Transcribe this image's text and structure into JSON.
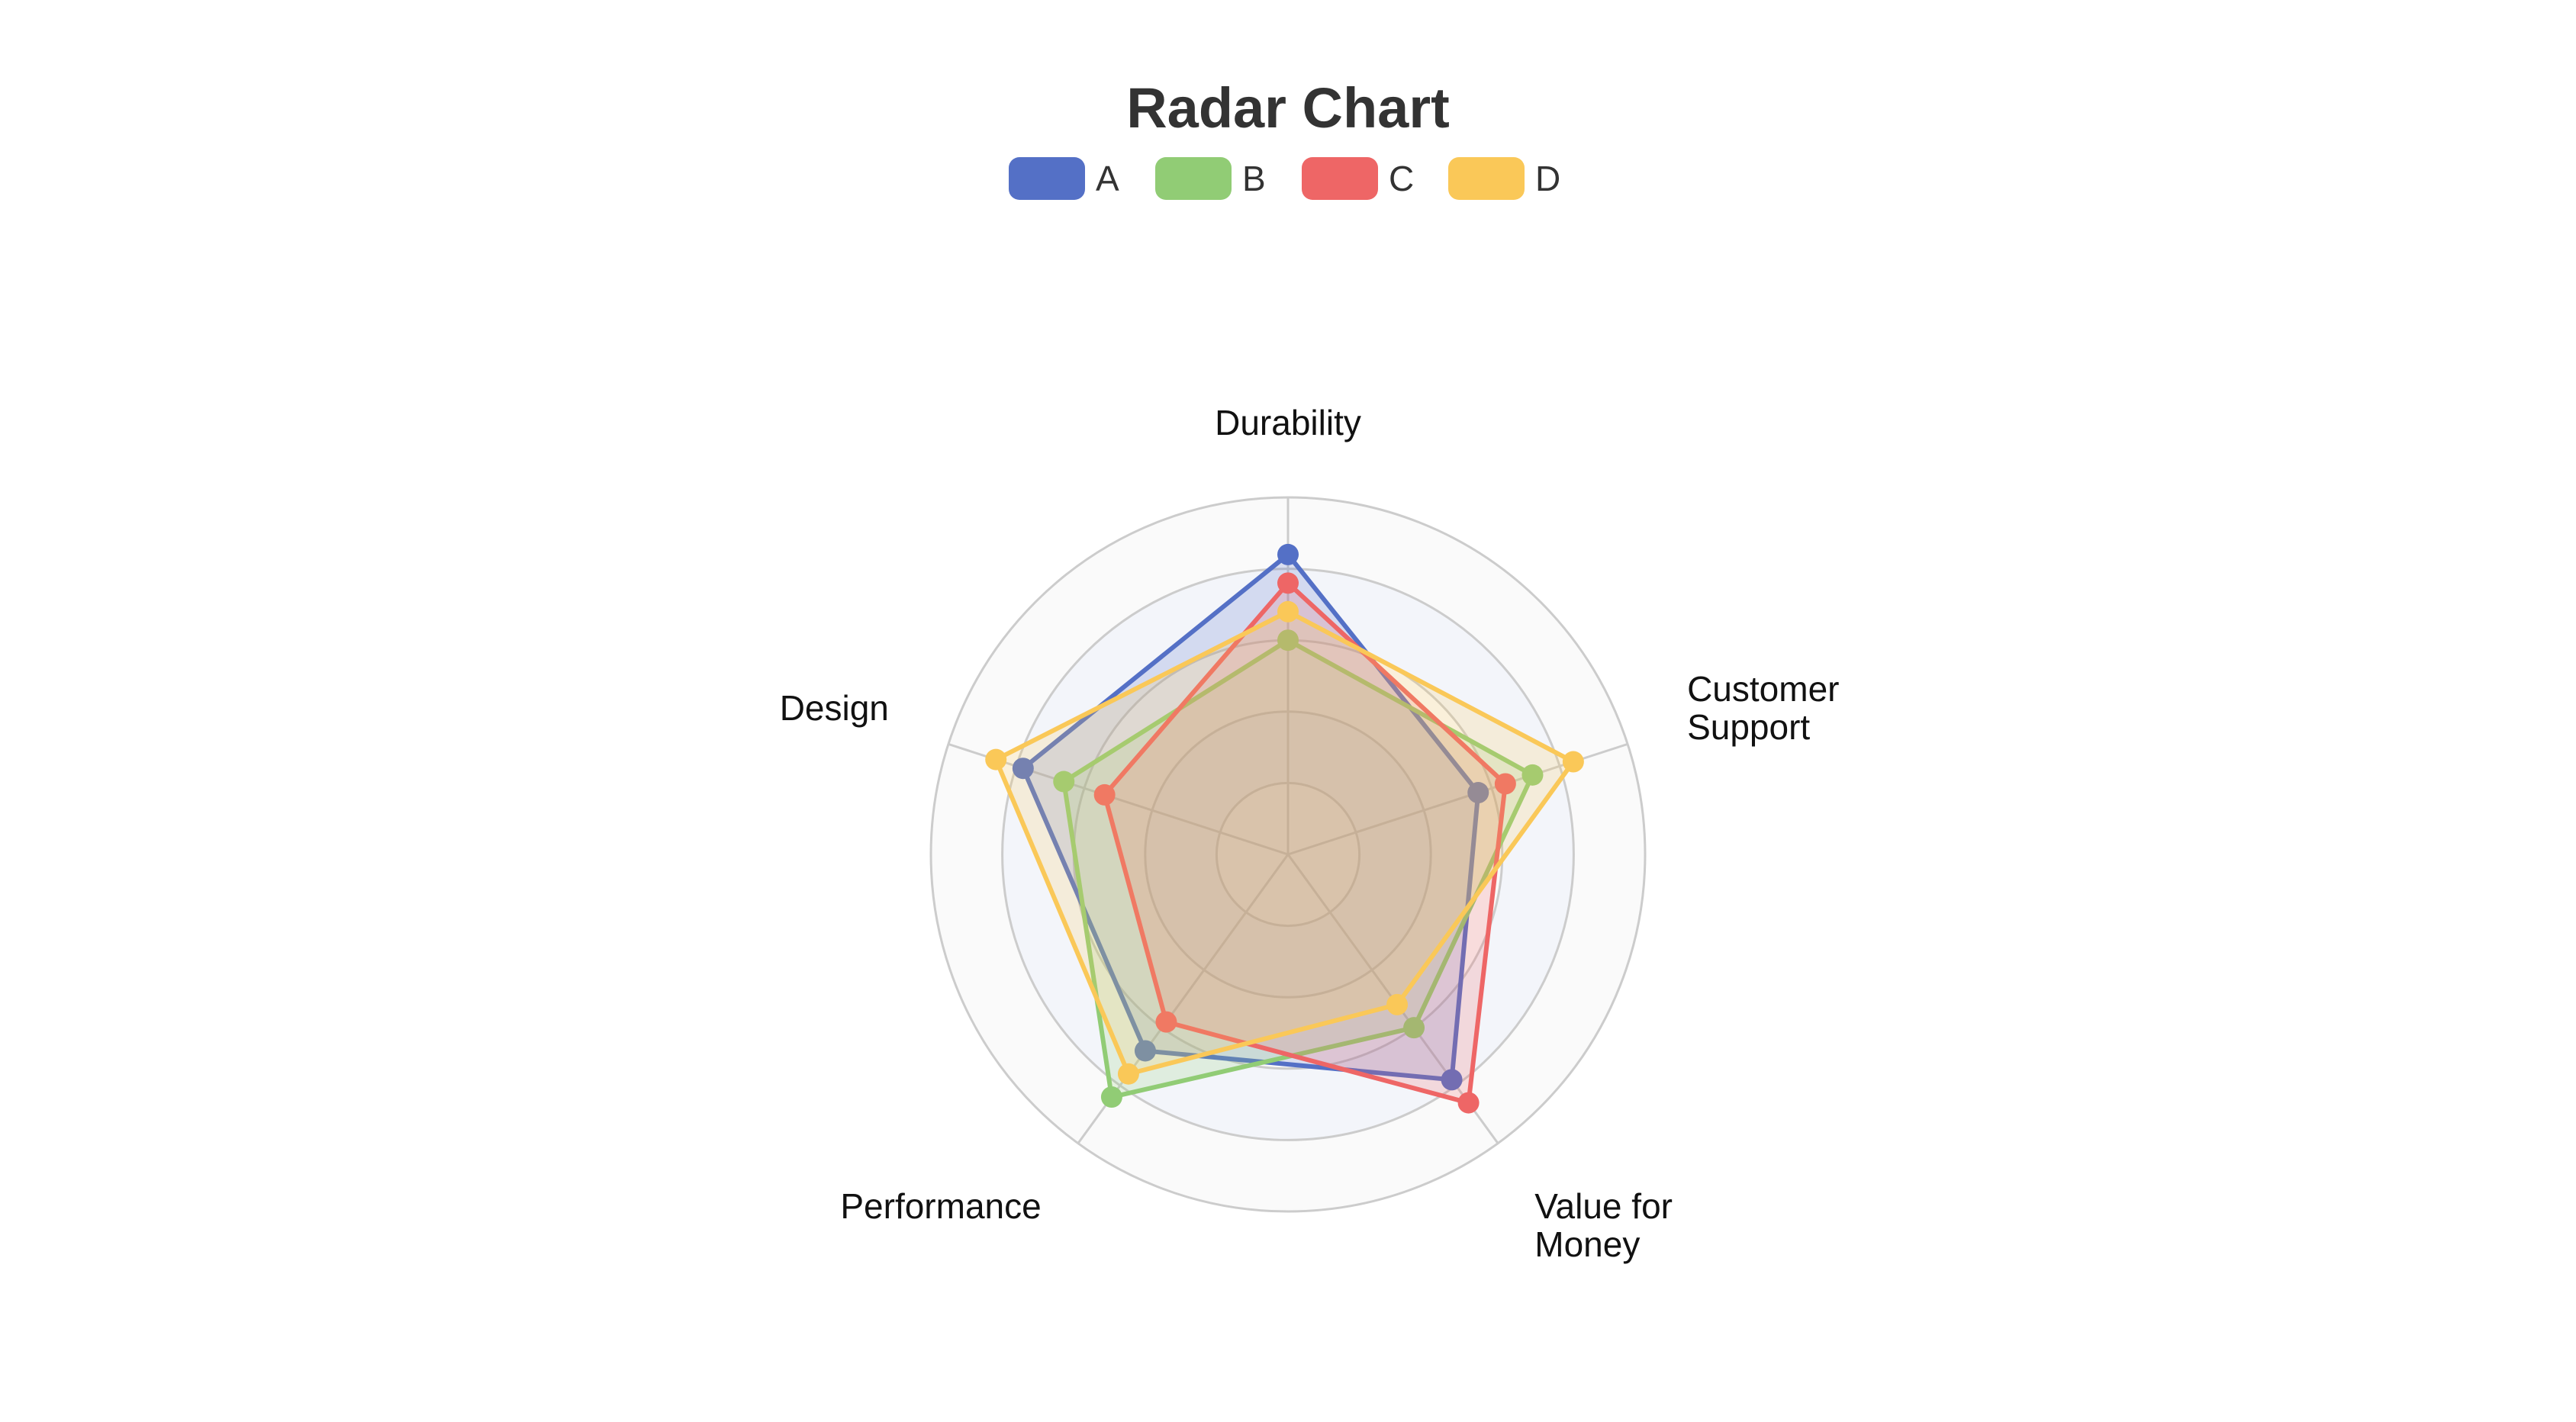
{
  "chart_data": {
    "type": "radar",
    "title": "Radar Chart",
    "indicators": [
      {
        "name": "Durability",
        "lines": [
          "Durability"
        ],
        "max": 5
      },
      {
        "name": "Customer Support",
        "lines": [
          "Customer",
          "Support"
        ],
        "max": 5
      },
      {
        "name": "Value for Money",
        "lines": [
          "Value for",
          "Money"
        ],
        "max": 5
      },
      {
        "name": "Performance",
        "lines": [
          "Performance"
        ],
        "max": 5
      },
      {
        "name": "Design",
        "lines": [
          "Design"
        ],
        "max": 5
      }
    ],
    "series": [
      {
        "name": "A",
        "color": "#5470c6",
        "values": [
          4.2,
          2.8,
          3.9,
          3.4,
          3.9
        ]
      },
      {
        "name": "B",
        "color": "#91cc75",
        "values": [
          3.0,
          3.6,
          3.0,
          4.2,
          3.3
        ]
      },
      {
        "name": "C",
        "color": "#ee6666",
        "values": [
          3.8,
          3.2,
          4.3,
          2.9,
          2.7
        ]
      },
      {
        "name": "D",
        "color": "#fac858",
        "values": [
          3.4,
          4.2,
          2.6,
          3.8,
          4.3
        ]
      }
    ],
    "legend_position": "top-center",
    "split_number": 5
  }
}
